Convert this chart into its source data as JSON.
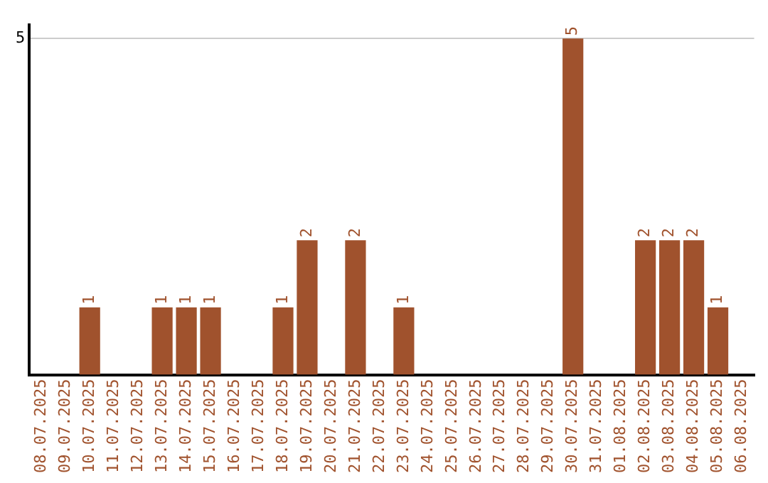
{
  "chart_data": {
    "type": "bar",
    "categories": [
      "08.07.2025",
      "09.07.2025",
      "10.07.2025",
      "11.07.2025",
      "12.07.2025",
      "13.07.2025",
      "14.07.2025",
      "15.07.2025",
      "16.07.2025",
      "17.07.2025",
      "18.07.2025",
      "19.07.2025",
      "20.07.2025",
      "21.07.2025",
      "22.07.2025",
      "23.07.2025",
      "24.07.2025",
      "25.07.2025",
      "26.07.2025",
      "27.07.2025",
      "28.07.2025",
      "29.07.2025",
      "30.07.2025",
      "31.07.2025",
      "01.08.2025",
      "02.08.2025",
      "03.08.2025",
      "04.08.2025",
      "05.08.2025",
      "06.08.2025"
    ],
    "values": [
      0,
      0,
      1,
      0,
      0,
      1,
      1,
      1,
      0,
      0,
      1,
      2,
      0,
      2,
      0,
      1,
      0,
      0,
      0,
      0,
      0,
      0,
      5,
      0,
      0,
      2,
      2,
      2,
      1,
      0
    ],
    "value_labels": [
      null,
      null,
      "1",
      null,
      null,
      "1",
      "1",
      "1",
      null,
      null,
      "1",
      "2",
      null,
      "2",
      null,
      "1",
      null,
      null,
      null,
      null,
      null,
      null,
      "5",
      null,
      null,
      "2",
      "2",
      "2",
      "1",
      null
    ],
    "color": "#a0522d",
    "ylim": [
      0,
      5.2
    ],
    "yticks": [
      5
    ],
    "grid": "y",
    "legend": false
  }
}
